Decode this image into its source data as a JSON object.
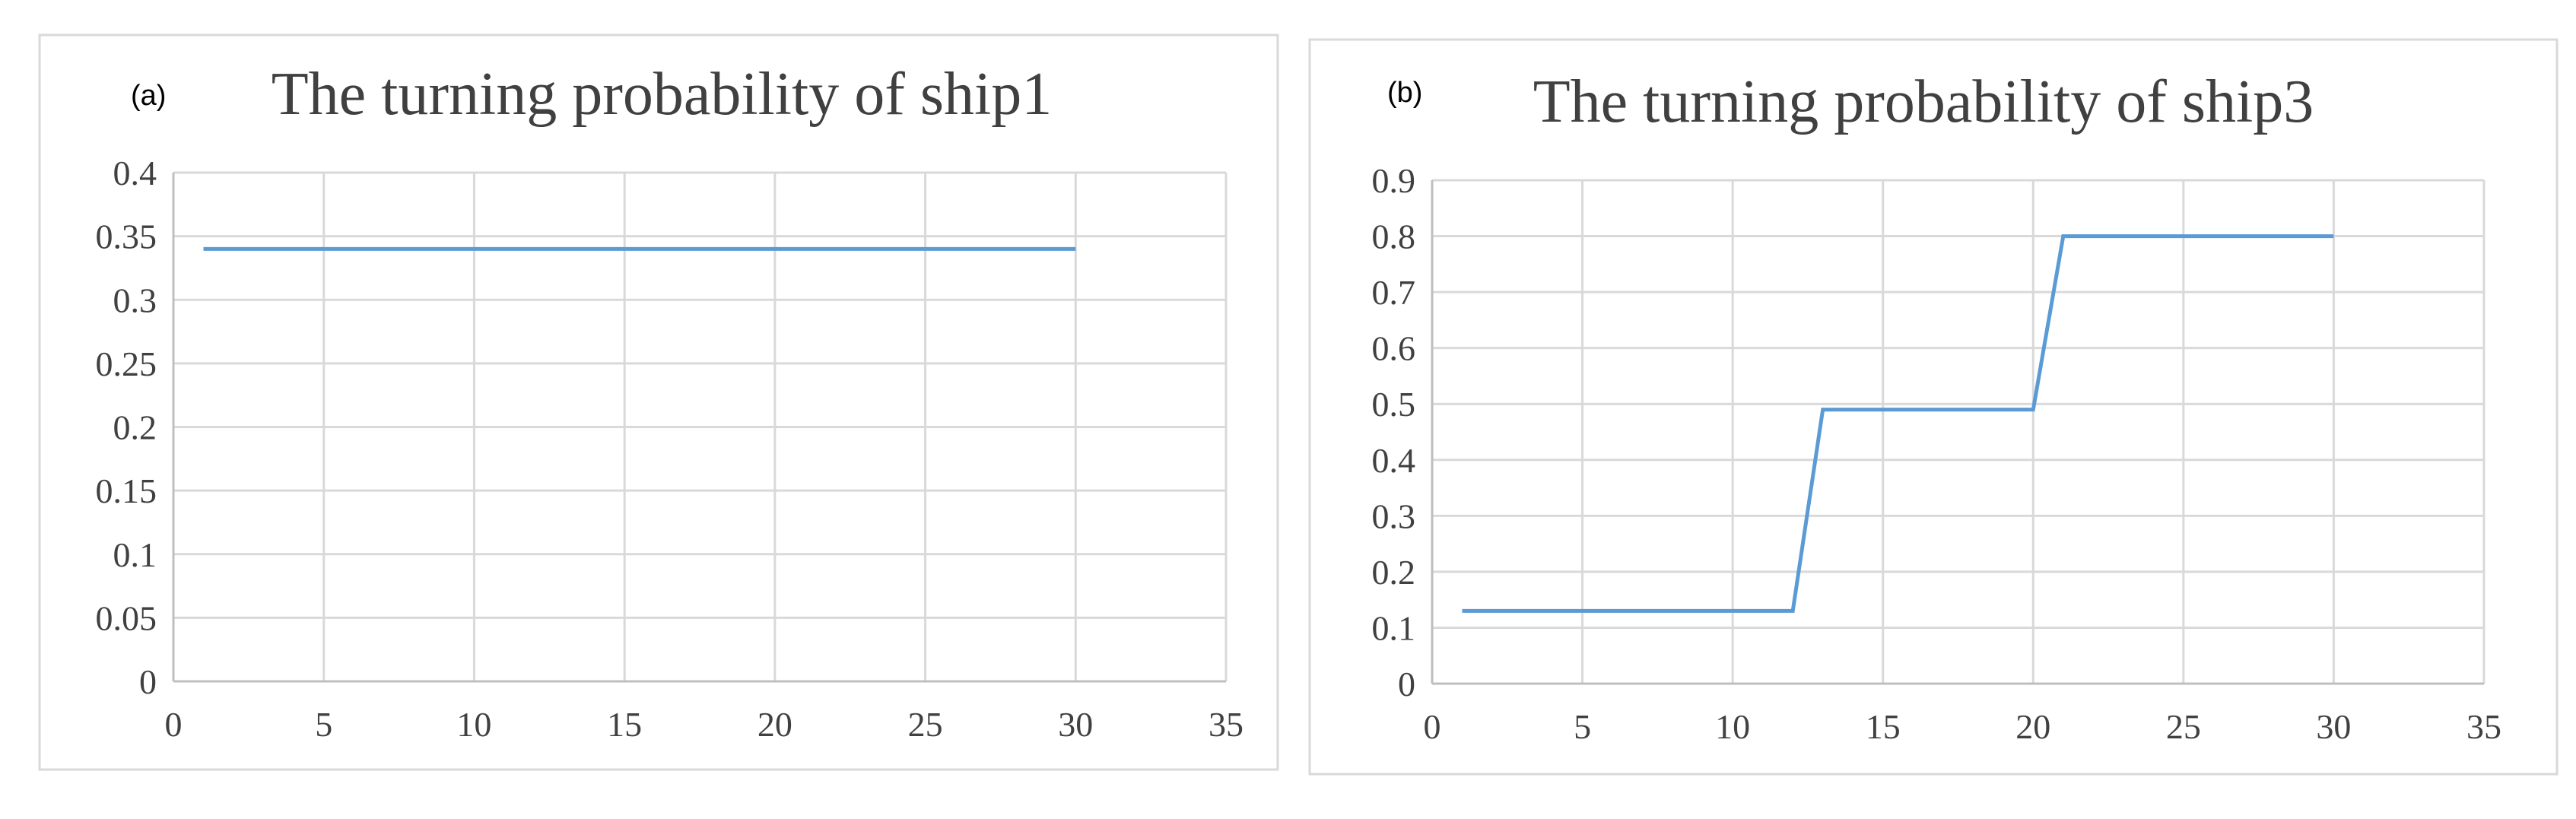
{
  "chart_data": [
    {
      "type": "line",
      "panel_label": "(a)",
      "title": "The turning probability of ship1",
      "xlabel": "",
      "ylabel": "",
      "xlim": [
        0,
        35
      ],
      "ylim": [
        0,
        0.4
      ],
      "x_ticks": [
        "0",
        "5",
        "10",
        "15",
        "20",
        "25",
        "30",
        "35"
      ],
      "y_ticks": [
        "0",
        "0.05",
        "0.1",
        "0.15",
        "0.2",
        "0.25",
        "0.3",
        "0.35",
        "0.4"
      ],
      "grid": true,
      "legend": "none",
      "series": [
        {
          "color": "#5b9bd5",
          "x": [
            1,
            30
          ],
          "y": [
            0.34,
            0.34
          ]
        }
      ]
    },
    {
      "type": "line",
      "panel_label": "(b)",
      "title": "The turning probability of ship3",
      "xlabel": "",
      "ylabel": "",
      "xlim": [
        0,
        35
      ],
      "ylim": [
        0,
        0.9
      ],
      "x_ticks": [
        "0",
        "5",
        "10",
        "15",
        "20",
        "25",
        "30",
        "35"
      ],
      "y_ticks": [
        "0",
        "0.1",
        "0.2",
        "0.3",
        "0.4",
        "0.5",
        "0.6",
        "0.7",
        "0.8",
        "0.9"
      ],
      "grid": true,
      "legend": "none",
      "series": [
        {
          "color": "#5b9bd5",
          "x": [
            1,
            12,
            13,
            20,
            21,
            30
          ],
          "y": [
            0.13,
            0.13,
            0.49,
            0.49,
            0.8,
            0.8
          ]
        }
      ]
    }
  ]
}
